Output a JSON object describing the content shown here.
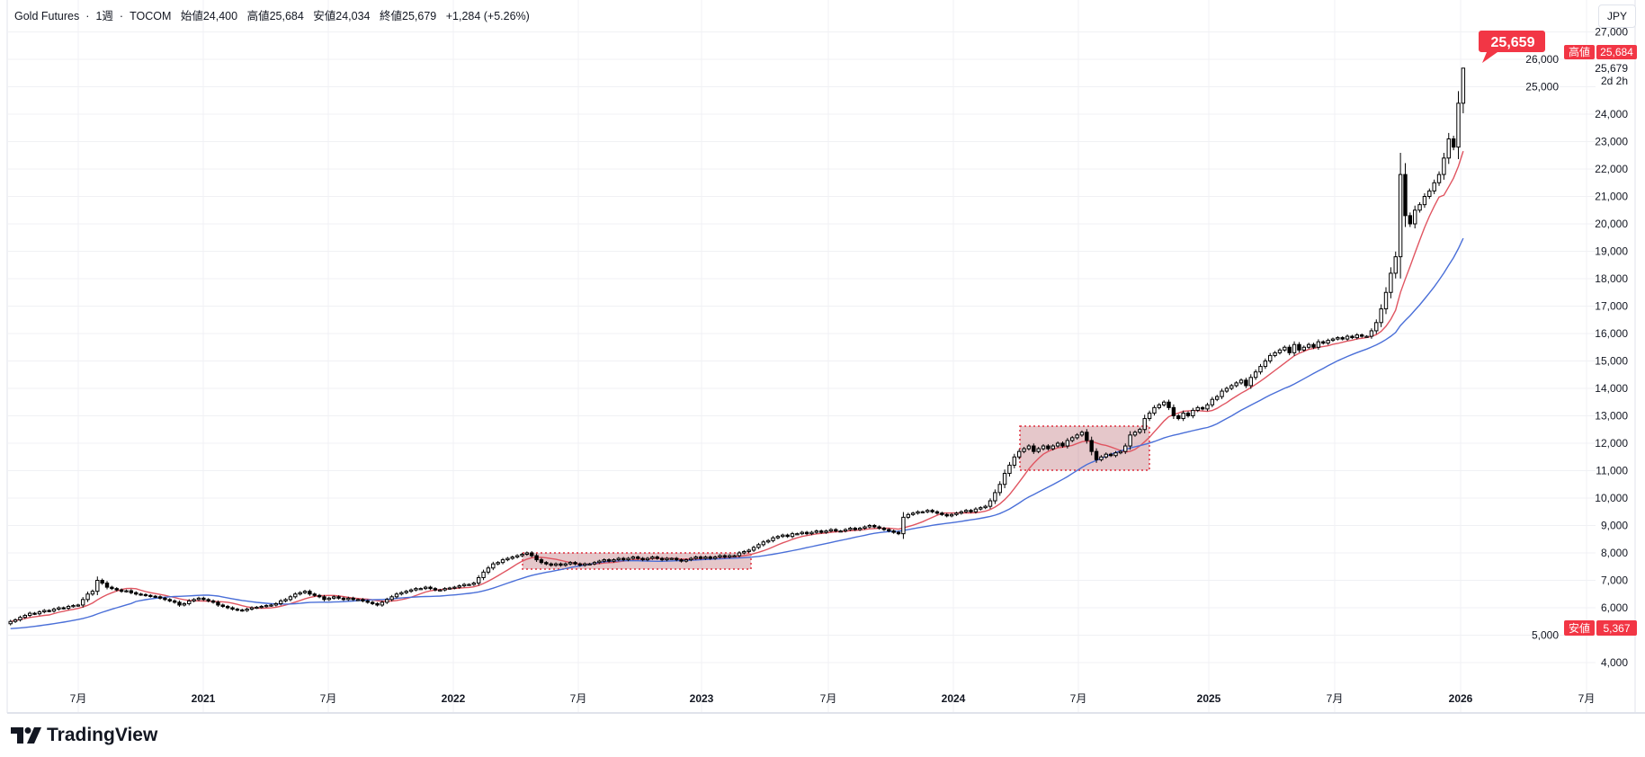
{
  "header": {
    "symbol": "Gold Futures",
    "interval": "1週",
    "exchange": "TOCOM",
    "open": "始値24,400",
    "high": "高値25,684",
    "low": "安値24,034",
    "close": "終値25,679",
    "change": "+1,284 (+5.26%)"
  },
  "currency_button": "JPY",
  "brand": "TradingView",
  "price_note": "25,659",
  "badges": {
    "high_label": "高値",
    "high_value": "25,684",
    "last_value": "25,679",
    "countdown": "2d 2h",
    "low_label": "安値",
    "low_value": "5,367"
  },
  "colors": {
    "up_body": "#ffffff",
    "down_body": "#000000",
    "ma_short": "#e05561",
    "ma_long": "#4a6fd8",
    "badge": "#f23645",
    "zone_fill": "rgba(170,70,80,0.3)",
    "zone_border": "#e0303f"
  },
  "chart_data": {
    "type": "candlestick",
    "interval": "1週",
    "ylim": [
      4000,
      27000
    ],
    "y_ticks": [
      "4,000",
      "5,000",
      "6,000",
      "7,000",
      "8,000",
      "9,000",
      "10,000",
      "11,000",
      "12,000",
      "13,000",
      "14,000",
      "15,000",
      "16,000",
      "17,000",
      "18,000",
      "19,000",
      "20,000",
      "21,000",
      "22,000",
      "23,000",
      "24,000",
      "25,000",
      "26,000",
      "27,000"
    ],
    "x_ticks": [
      {
        "label": "7月",
        "bold": false
      },
      {
        "label": "2021",
        "bold": true
      },
      {
        "label": "7月",
        "bold": false
      },
      {
        "label": "2022",
        "bold": true
      },
      {
        "label": "7月",
        "bold": false
      },
      {
        "label": "2023",
        "bold": true
      },
      {
        "label": "7月",
        "bold": false
      },
      {
        "label": "2024",
        "bold": true
      },
      {
        "label": "7月",
        "bold": false
      },
      {
        "label": "2025",
        "bold": true
      },
      {
        "label": "7月",
        "bold": false
      },
      {
        "label": "2026",
        "bold": true
      },
      {
        "label": "7月",
        "bold": false
      }
    ],
    "last_candle": {
      "open": 24400,
      "high": 25684,
      "low": 24034,
      "close": 25679
    },
    "weekly_closes": [
      5500,
      5560,
      5650,
      5720,
      5800,
      5780,
      5850,
      5900,
      5880,
      5950,
      6000,
      5980,
      6050,
      6080,
      6100,
      6300,
      6500,
      6600,
      7000,
      6900,
      6750,
      6700,
      6650,
      6600,
      6620,
      6550,
      6500,
      6480,
      6450,
      6420,
      6400,
      6350,
      6300,
      6250,
      6200,
      6100,
      6150,
      6250,
      6300,
      6350,
      6300,
      6250,
      6200,
      6100,
      6050,
      6000,
      5950,
      5920,
      5900,
      5950,
      6000,
      6020,
      6050,
      6080,
      6100,
      6150,
      6250,
      6300,
      6400,
      6500,
      6550,
      6600,
      6500,
      6450,
      6400,
      6300,
      6350,
      6400,
      6350,
      6300,
      6350,
      6300,
      6300,
      6250,
      6200,
      6150,
      6100,
      6200,
      6300,
      6400,
      6500,
      6550,
      6600,
      6650,
      6700,
      6700,
      6750,
      6700,
      6650,
      6650,
      6700,
      6720,
      6750,
      6800,
      6850,
      6850,
      6900,
      7100,
      7300,
      7450,
      7600,
      7650,
      7750,
      7800,
      7850,
      7900,
      7950,
      8000,
      7900,
      7750,
      7650,
      7600,
      7550,
      7600,
      7550,
      7600,
      7650,
      7600,
      7550,
      7600,
      7600,
      7650,
      7700,
      7750,
      7700,
      7750,
      7800,
      7750,
      7800,
      7850,
      7800,
      7750,
      7800,
      7850,
      7800,
      7750,
      7800,
      7800,
      7750,
      7700,
      7750,
      7800,
      7850,
      7800,
      7850,
      7800,
      7850,
      7900,
      7850,
      7900,
      7900,
      8000,
      8050,
      8100,
      8200,
      8300,
      8400,
      8450,
      8550,
      8600,
      8650,
      8600,
      8700,
      8700,
      8750,
      8700,
      8750,
      8800,
      8750,
      8800,
      8850,
      8800,
      8800,
      8850,
      8900,
      8850,
      8900,
      8950,
      9000,
      8950,
      8900,
      8850,
      8800,
      8750,
      8700,
      9300,
      9400,
      9450,
      9500,
      9500,
      9550,
      9500,
      9450,
      9400,
      9350,
      9400,
      9450,
      9500,
      9550,
      9500,
      9600,
      9650,
      9700,
      9900,
      10200,
      10500,
      10900,
      11200,
      11500,
      11700,
      11800,
      11900,
      11700,
      11800,
      11900,
      11800,
      11900,
      12000,
      11900,
      12100,
      12200,
      12300,
      12400,
      12100,
      11700,
      11400,
      11500,
      11600,
      11550,
      11650,
      11700,
      11900,
      12300,
      12400,
      12500,
      12900,
      13100,
      13300,
      13400,
      13500,
      13300,
      13000,
      12900,
      13100,
      13000,
      13200,
      13300,
      13250,
      13400,
      13600,
      13700,
      13900,
      14000,
      14100,
      14200,
      14300,
      14100,
      14400,
      14600,
      14800,
      15000,
      15200,
      15300,
      15400,
      15500,
      15300,
      15600,
      15400,
      15500,
      15600,
      15500,
      15700,
      15650,
      15750,
      15800,
      15850,
      15800,
      15900,
      15850,
      15950,
      15900,
      15900,
      16100,
      16400,
      16900,
      17500,
      18200,
      18800,
      21800,
      20300,
      20000,
      20500,
      20700,
      21000,
      21200,
      21500,
      21800,
      22400,
      23100,
      22800,
      24400,
      25679
    ]
  }
}
